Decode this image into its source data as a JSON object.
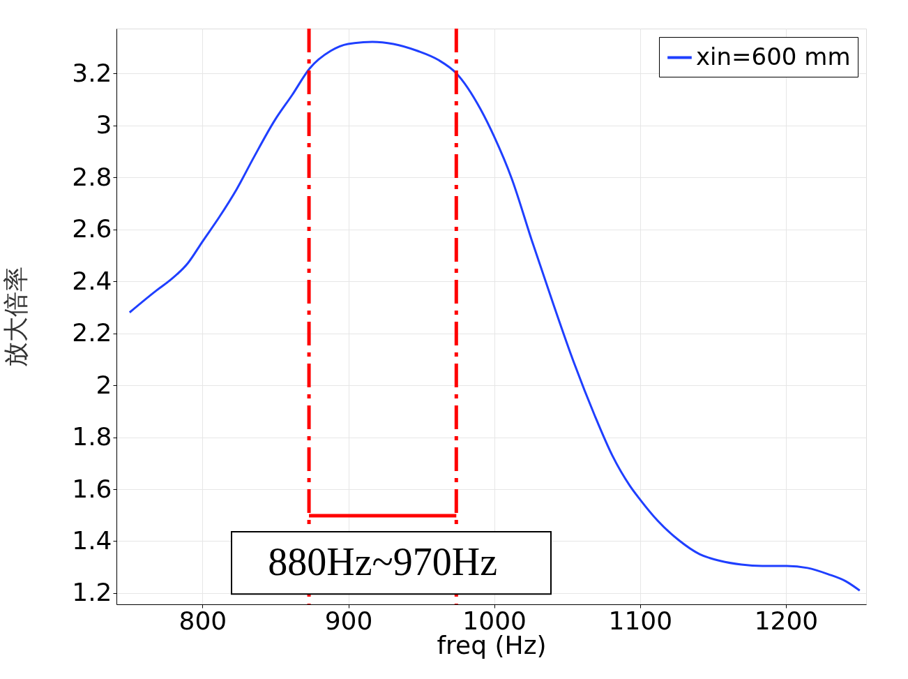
{
  "chart_data": {
    "type": "line",
    "xlabel": "freq (Hz)",
    "ylabel": "放大倍率",
    "x": [
      750,
      768.5,
      778,
      790,
      800,
      811.5,
      823.4,
      835,
      849.6,
      861.5,
      873.5,
      887.8,
      899.8,
      916.5,
      930.8,
      947.5,
      961.8,
      974,
      990.5,
      1000,
      1012,
      1026,
      1040.6,
      1054.9,
      1069,
      1081,
      1093,
      1100,
      1112,
      1126.5,
      1140.8,
      1155,
      1169.5,
      1183.8,
      1200.5,
      1214.8,
      1229,
      1241,
      1250.6
    ],
    "series": [
      {
        "name": "xin=600 mm",
        "color": "#1f3fff",
        "values": [
          2.28,
          2.365,
          2.405,
          2.47,
          2.553,
          2.647,
          2.754,
          2.875,
          3.02,
          3.117,
          3.219,
          3.286,
          3.313,
          3.321,
          3.313,
          3.286,
          3.251,
          3.2,
          3.063,
          2.956,
          2.795,
          2.553,
          2.311,
          2.083,
          1.882,
          1.729,
          1.613,
          1.56,
          1.479,
          1.404,
          1.35,
          1.324,
          1.31,
          1.305,
          1.305,
          1.297,
          1.273,
          1.246,
          1.21
        ]
      }
    ],
    "xlim": [
      741,
      1255
    ],
    "ylim": [
      1.157,
      3.372
    ],
    "xticks": [
      800,
      900,
      1000,
      1100,
      1200
    ],
    "yticks": [
      1.2,
      1.4,
      1.6,
      1.8,
      2,
      2.2,
      2.4,
      2.6,
      2.8,
      3,
      3.2
    ],
    "ref_lines": [
      {
        "axis": "x",
        "value": 873,
        "color": "#ff0000",
        "line_style": "dashed"
      },
      {
        "axis": "x",
        "value": 974,
        "color": "#ff0000",
        "line_style": "dashed"
      }
    ],
    "annotations": [
      "880Hz~970Hz"
    ],
    "grid": true,
    "legend": "top right",
    "marker": "none",
    "line_style": "solid"
  }
}
